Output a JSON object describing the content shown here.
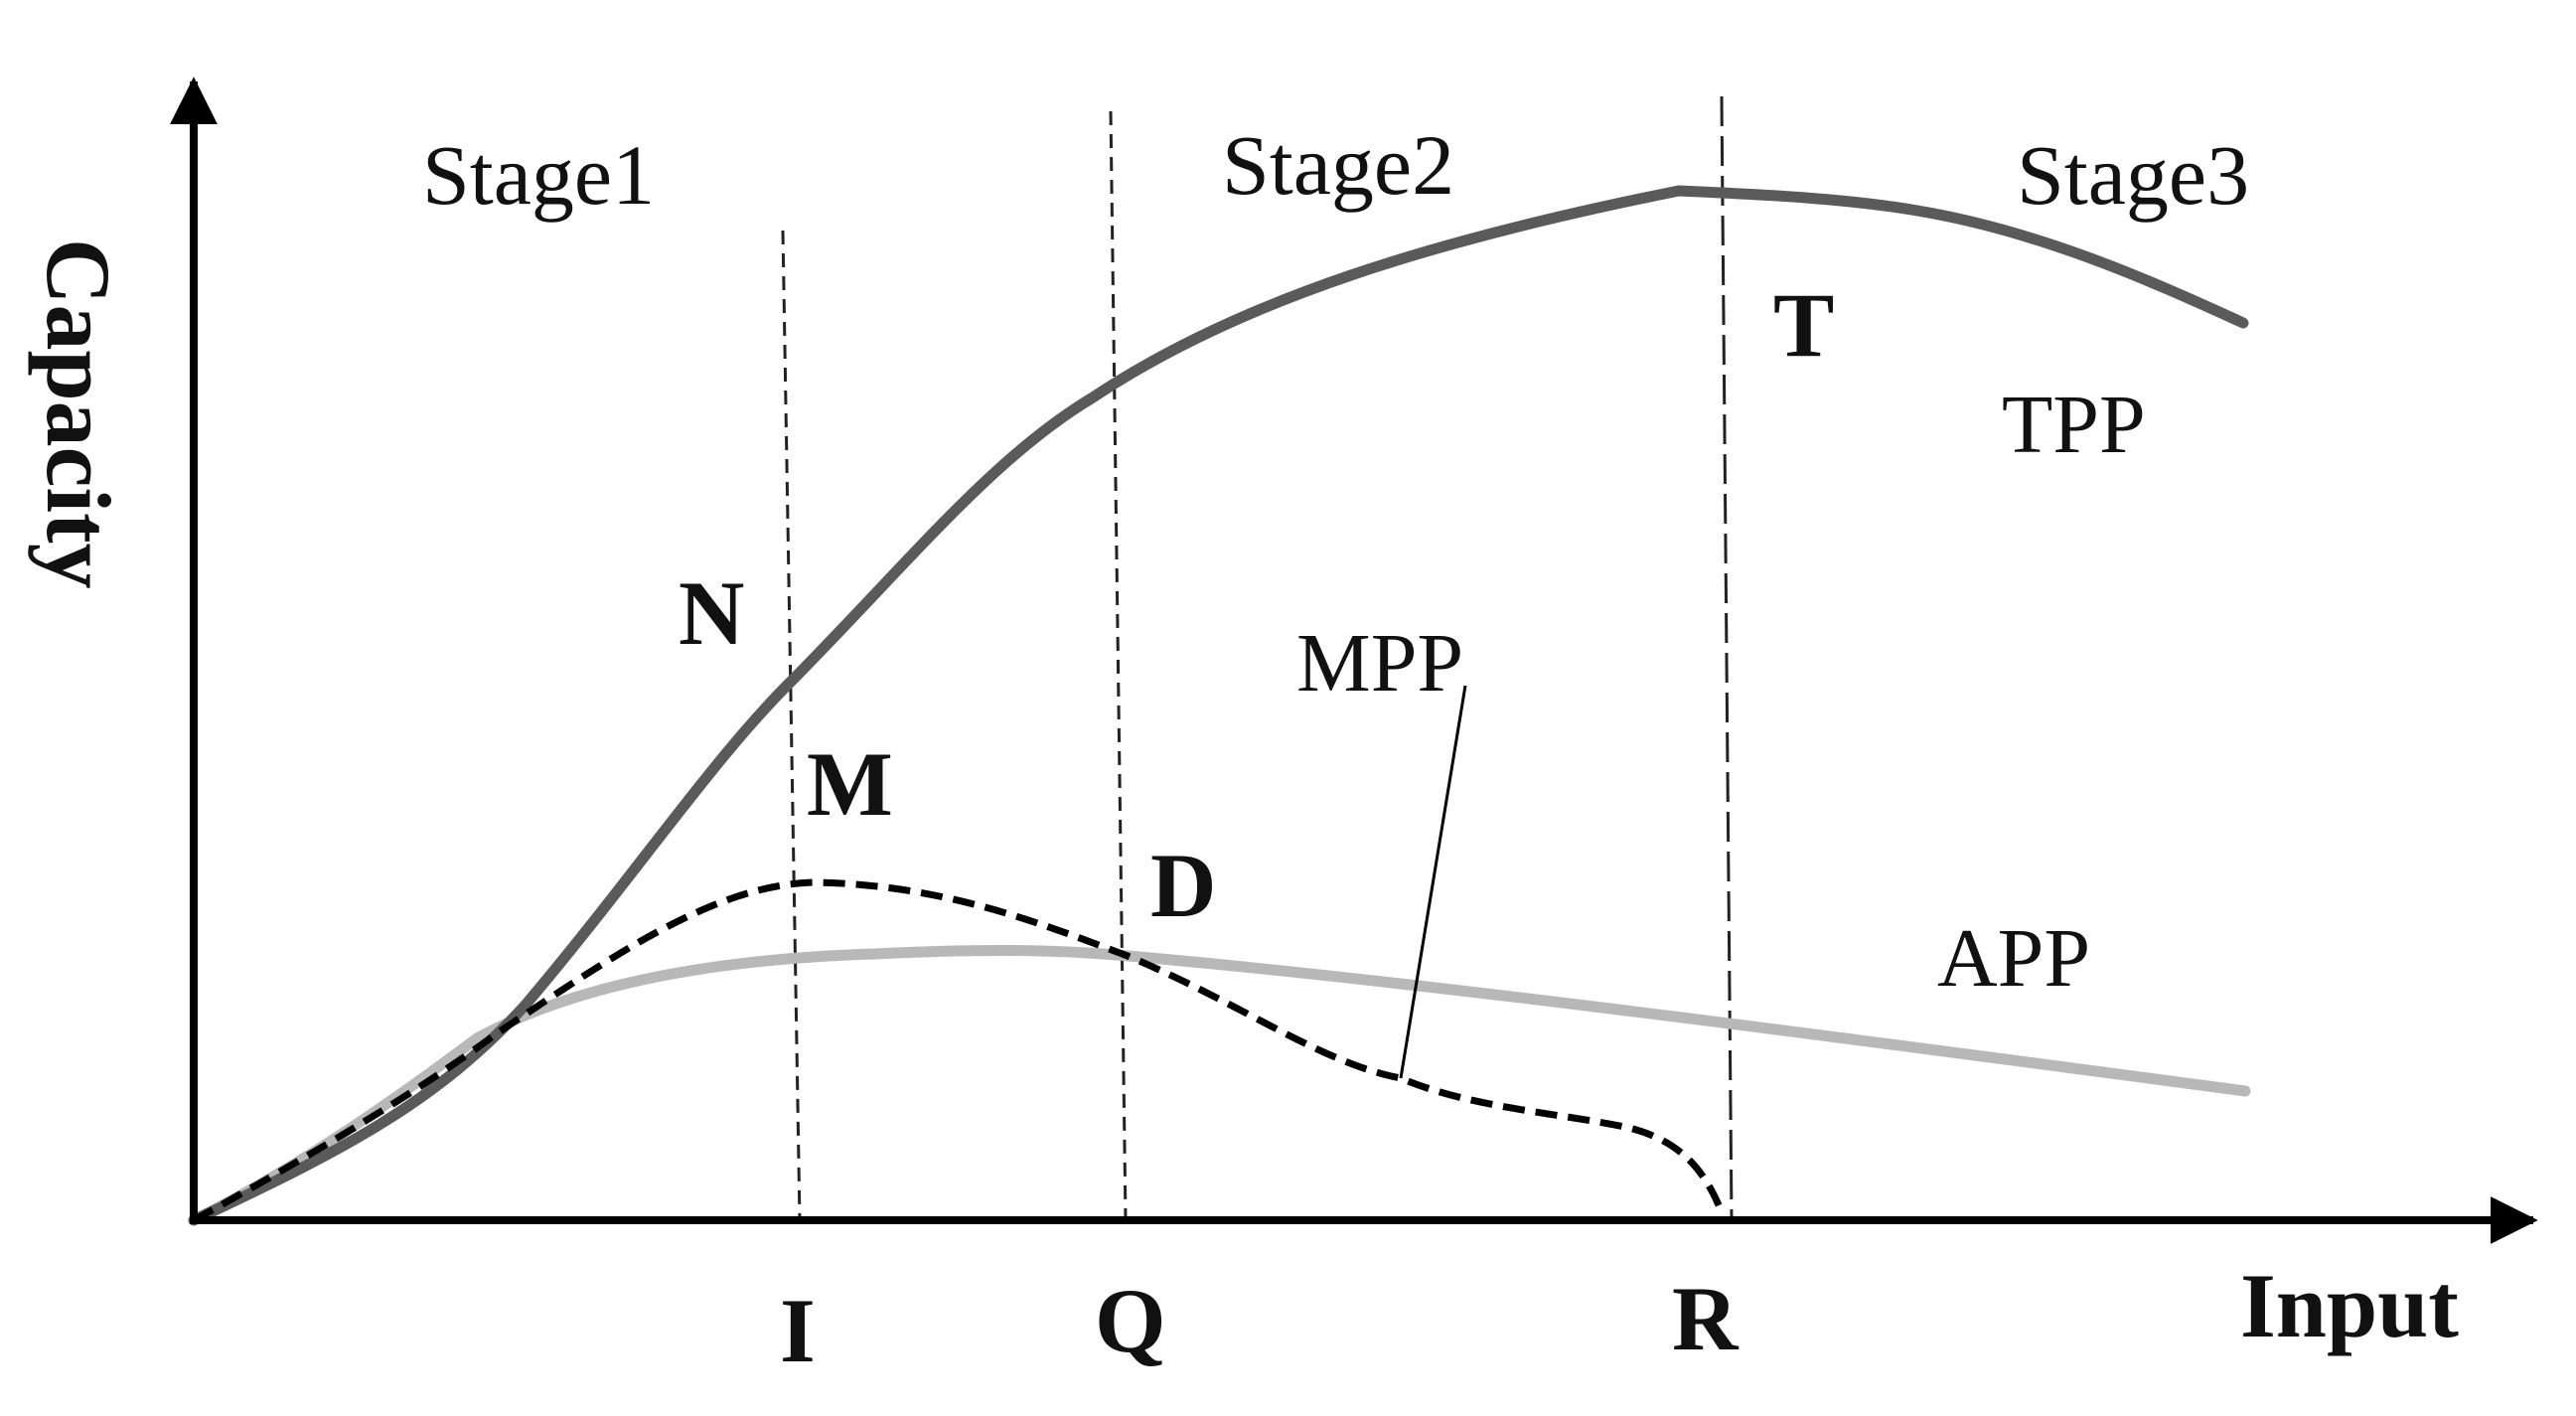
{
  "axes": {
    "x_label": "Input",
    "y_label": "Capacity"
  },
  "stages": [
    "Stage1",
    "Stage2",
    "Stage3"
  ],
  "curves": {
    "tpp": "TPP",
    "mpp": "MPP",
    "app": "APP"
  },
  "points": {
    "n": "N",
    "m": "M",
    "d": "D",
    "t": "T"
  },
  "x_markers": {
    "i": "I",
    "q": "Q",
    "r": "R"
  },
  "colors": {
    "axis": "#000000",
    "tpp": "#5a5a5a",
    "mpp": "#000000",
    "app": "#b8b8b8",
    "divider": "#222222"
  }
}
